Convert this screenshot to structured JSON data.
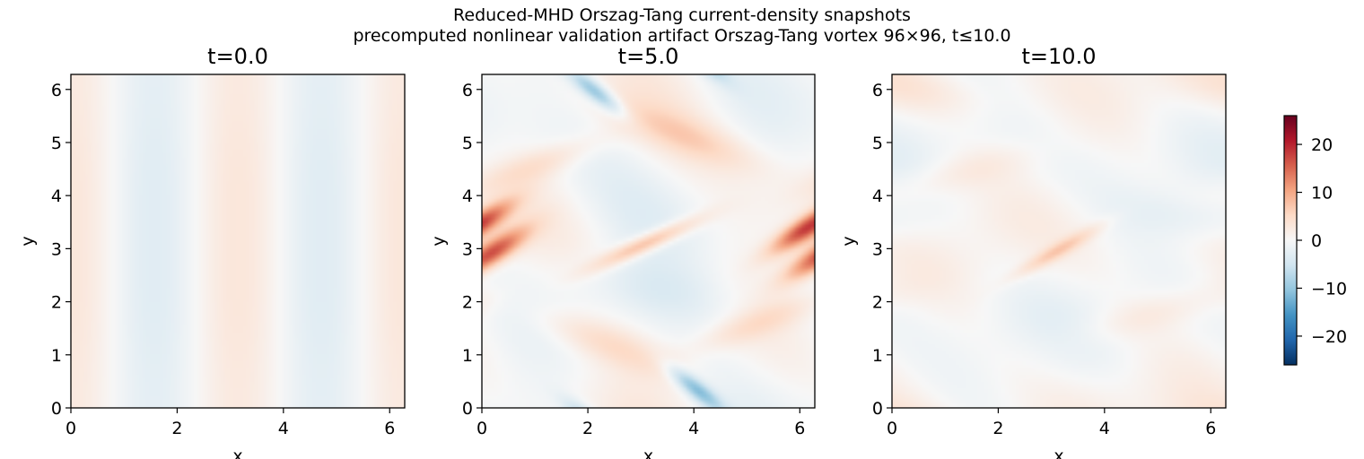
{
  "figure": {
    "title": "Reduced-MHD Orszag-Tang current-density snapshots",
    "subtitle": "precomputed nonlinear validation artifact Orszag-Tang vortex 96×96, t≤10.0"
  },
  "chart_data": [
    {
      "type": "heatmap",
      "title": "t=0.0",
      "xlabel": "x",
      "ylabel": "y",
      "xlim": [
        0,
        6.283
      ],
      "ylim": [
        0,
        6.283
      ],
      "xticks": [
        "0",
        "2",
        "4",
        "6"
      ],
      "yticks": [
        "0",
        "1",
        "2",
        "3",
        "4",
        "5",
        "6"
      ],
      "grid": "96×96",
      "description_values": "Smooth initial current density, vertical bands: light blue minima near x≈1.6 and x≈4.7 (≈-4), light red maxima near x≈0, 3.1, 6.3 (≈+4)"
    },
    {
      "type": "heatmap",
      "title": "t=5.0",
      "xlabel": "x",
      "ylabel": "y",
      "xlim": [
        0,
        6.283
      ],
      "ylim": [
        0,
        6.283
      ],
      "xticks": [
        "0",
        "2",
        "4",
        "6"
      ],
      "yticks": [
        "0",
        "1",
        "2",
        "3",
        "4",
        "5",
        "6"
      ],
      "grid": "96×96",
      "description_values": "Thin current sheets; strongest positive near x≈0.1,y≈2.9 and x≈6.2,y≈3.4 (≈+18); central sheet near x≈3.1,y≈3.1 (≈+10); blue filaments near x≈2.2,y≈6.0 and x≈4.0,y≈0.3 (≈-12)"
    },
    {
      "type": "heatmap",
      "title": "t=10.0",
      "xlabel": "x",
      "ylabel": "y",
      "xlim": [
        0,
        6.283
      ],
      "ylim": [
        0,
        6.283
      ],
      "xticks": [
        "0",
        "2",
        "4",
        "6"
      ],
      "yticks": [
        "0",
        "1",
        "2",
        "3",
        "4",
        "5",
        "6"
      ],
      "grid": "96×96",
      "description_values": "Decayed turbulent state, weak structures (≈±5), central diagonal sheet near x≈3.1,y≈3.0"
    }
  ],
  "colorbar": {
    "colormap": "RdBu_r",
    "vmin": -26,
    "vmax": 26,
    "ticks": [
      {
        "value": 20,
        "label": "20"
      },
      {
        "value": 10,
        "label": "10"
      },
      {
        "value": 0,
        "label": "0"
      },
      {
        "value": -10,
        "label": "−10"
      },
      {
        "value": -20,
        "label": "−20"
      }
    ]
  },
  "colors": {
    "axis": "#000000",
    "max": "#67001f",
    "min": "#053061"
  }
}
